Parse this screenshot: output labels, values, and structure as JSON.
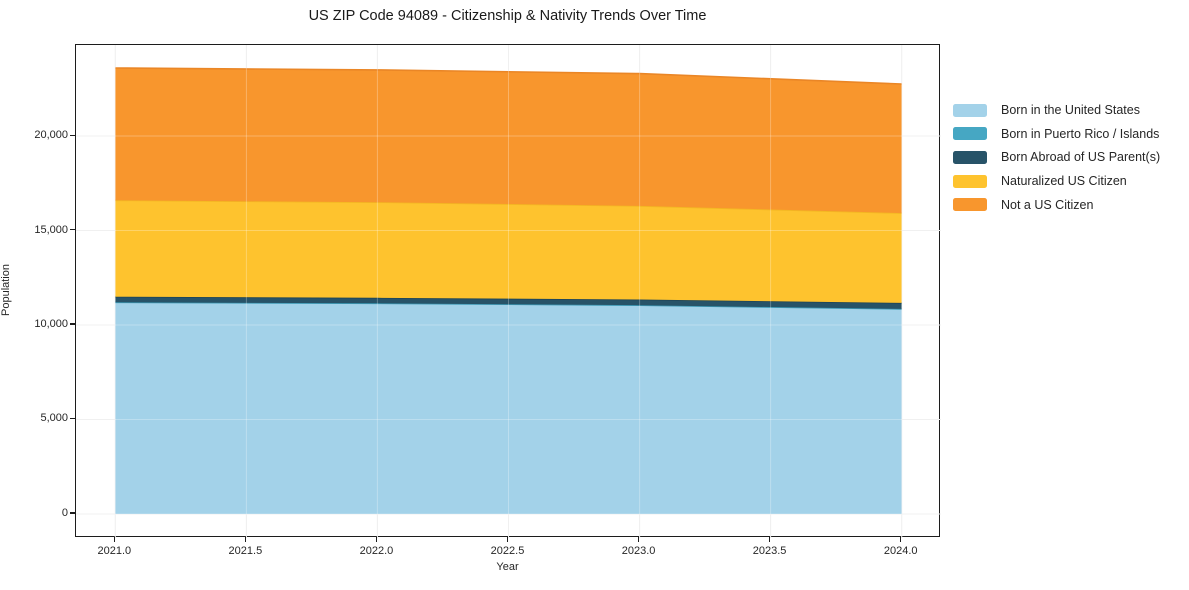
{
  "chart_data": {
    "type": "area",
    "stacked": true,
    "title": "US ZIP Code 94089 - Citizenship & Nativity Trends Over Time",
    "xlabel": "Year",
    "ylabel": "Population",
    "x": [
      2021,
      2022,
      2023,
      2024
    ],
    "series": [
      {
        "name": "Born in the United States",
        "color": "#a3d2e9",
        "edge_color": "#8fc5e0",
        "values": [
          11200,
          11150,
          11050,
          10850
        ]
      },
      {
        "name": "Born in Puerto Rico / Islands",
        "color": "#46a7c3",
        "edge_color": "#3c99b4",
        "values": [
          0,
          0,
          0,
          0
        ]
      },
      {
        "name": "Born Abroad of US Parent(s)",
        "color": "#275368",
        "edge_color": "#1f4456",
        "values": [
          300,
          290,
          300,
          320
        ]
      },
      {
        "name": "Naturalized US Citizen",
        "color": "#fec32e",
        "edge_color": "#f3b622",
        "values": [
          5100,
          5060,
          4950,
          4750
        ]
      },
      {
        "name": "Not a US Citizen",
        "color": "#f8962d",
        "edge_color": "#ea8626",
        "values": [
          7000,
          7000,
          7000,
          6830
        ]
      }
    ],
    "totals": [
      23600,
      23500,
      23300,
      22750
    ],
    "xlim": [
      2020.85,
      2024.15
    ],
    "ylim": [
      -1270,
      24815
    ],
    "xticks": {
      "values": [
        2021.0,
        2021.5,
        2022.0,
        2022.5,
        2023.0,
        2023.5,
        2024.0
      ],
      "labels": [
        "2021.0",
        "2021.5",
        "2022.0",
        "2022.5",
        "2023.0",
        "2023.5",
        "2024.0"
      ]
    },
    "yticks": {
      "values": [
        0,
        5000,
        10000,
        15000,
        20000
      ],
      "labels": [
        "0",
        "5,000",
        "10,000",
        "15,000",
        "20,000"
      ]
    },
    "grid": true,
    "grid_color_under": "#eaeaea",
    "grid_color_over": "rgba(255,255,255,0.28)",
    "legend_position": "right-outside",
    "axis_color": "#1c1c1c"
  }
}
